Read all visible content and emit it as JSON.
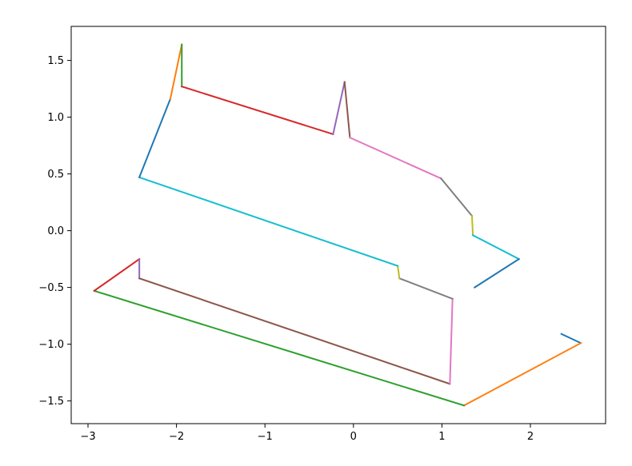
{
  "chart_data": {
    "type": "line",
    "title": "",
    "xlabel": "",
    "ylabel": "",
    "xlim": [
      -3.19,
      2.85
    ],
    "ylim": [
      -1.7,
      1.8
    ],
    "grid": false,
    "xticks": [
      -3,
      -2,
      -1,
      0,
      1,
      2
    ],
    "yticks": [
      -1.5,
      -1.0,
      -0.5,
      0.0,
      0.5,
      1.0,
      1.5
    ],
    "xtick_labels": [
      "−3",
      "−2",
      "−1",
      "0",
      "1",
      "2"
    ],
    "ytick_labels": [
      "−1.5",
      "−1.0",
      "−0.5",
      "0.0",
      "0.5",
      "1.0",
      "1.5"
    ],
    "color_cycle": [
      "#1f77b4",
      "#ff7f0e",
      "#2ca02c",
      "#d62728",
      "#9467bd",
      "#8c564b",
      "#e377c2",
      "#7f7f7f",
      "#bcbd22",
      "#17becf"
    ],
    "path_points": [
      [
        2.35,
        -0.91
      ],
      [
        2.57,
        -0.99
      ],
      [
        1.25,
        -1.54
      ],
      [
        -2.93,
        -0.53
      ],
      [
        -2.42,
        -0.25
      ],
      [
        -2.42,
        -0.42
      ],
      [
        1.09,
        -1.35
      ],
      [
        1.12,
        -0.6
      ],
      [
        0.52,
        -0.42
      ],
      [
        0.5,
        -0.31
      ],
      [
        -2.42,
        0.47
      ],
      [
        -2.07,
        1.16
      ],
      [
        -1.94,
        1.64
      ],
      [
        -1.94,
        1.27
      ],
      [
        -0.23,
        0.85
      ],
      [
        -0.1,
        1.31
      ],
      [
        -0.04,
        0.82
      ],
      [
        0.99,
        0.46
      ],
      [
        1.34,
        0.13
      ],
      [
        1.35,
        -0.04
      ],
      [
        1.87,
        -0.25
      ],
      [
        1.37,
        -0.5
      ]
    ]
  }
}
